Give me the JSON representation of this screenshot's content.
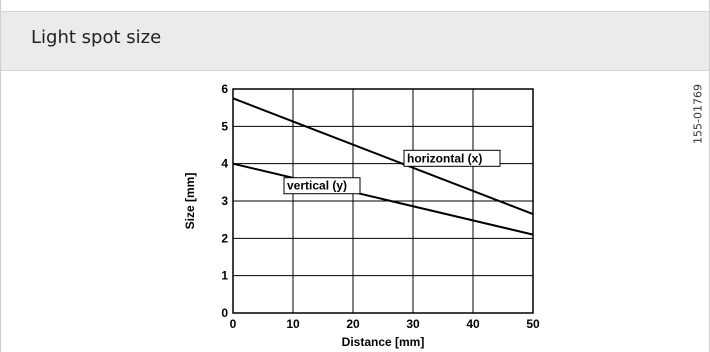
{
  "header": {
    "title": "Light spot size"
  },
  "doc_code": "155-01769",
  "chart_data": {
    "type": "line",
    "xlabel": "Distance [mm]",
    "ylabel": "Size [mm]",
    "xlim": [
      0,
      50
    ],
    "ylim": [
      0,
      6
    ],
    "xticks": [
      0,
      10,
      20,
      30,
      40,
      50
    ],
    "yticks": [
      0,
      1,
      2,
      3,
      4,
      5,
      6
    ],
    "grid": true,
    "series": [
      {
        "name": "horizontal (x)",
        "x": [
          0,
          50
        ],
        "y": [
          5.75,
          2.65
        ],
        "color": "#000000"
      },
      {
        "name": "vertical (y)",
        "x": [
          0,
          50
        ],
        "y": [
          4.0,
          2.1
        ],
        "color": "#000000"
      }
    ]
  }
}
